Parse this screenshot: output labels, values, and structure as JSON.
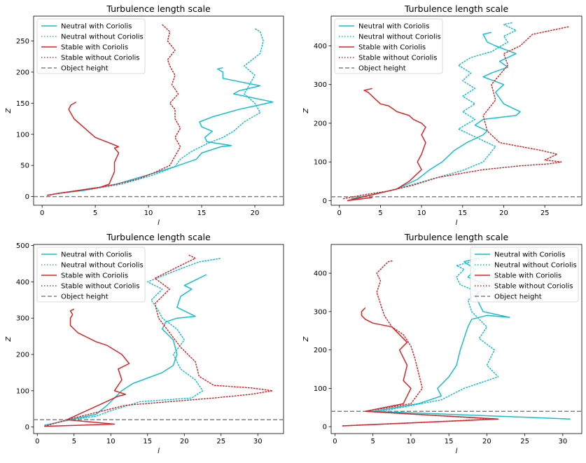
{
  "colors": {
    "neutral": "#17becf",
    "stable": "#d62728",
    "object": "#808080"
  },
  "chart_data": [
    {
      "type": "line",
      "title": "Turbulence length scale",
      "xlabel": "l",
      "ylabel": "Z",
      "xlim": [
        -0.8,
        22.7
      ],
      "ylim": [
        -14,
        290
      ],
      "xticks": [
        "0",
        "5",
        "10",
        "15",
        "20"
      ],
      "yticks": [
        "0",
        "50",
        "100",
        "150",
        "200",
        "250"
      ],
      "legend_position": "top-left",
      "object_height": 0,
      "series": [
        {
          "name": "Neutral with Coriolis",
          "style": "solid",
          "color": "#17becf",
          "x": [
            1.5,
            4.0,
            7.0,
            10.0,
            12.5,
            14.5,
            15.0,
            16.8,
            17.8,
            15.5,
            15.3,
            16.0,
            15.0,
            14.8,
            16.0,
            18.5,
            21.7,
            18.0,
            18.5,
            20.5,
            17.0,
            17.0,
            16.5,
            17.0
          ],
          "y": [
            5,
            10,
            20,
            35,
            48,
            60,
            70,
            80,
            82,
            88,
            95,
            105,
            112,
            120,
            128,
            140,
            152,
            165,
            170,
            178,
            190,
            200,
            205,
            207
          ]
        },
        {
          "name": "Neutral without Coriolis",
          "style": "dotted",
          "color": "#17becf",
          "x": [
            1.5,
            4.0,
            7.5,
            10.5,
            12.5,
            13.0,
            14.0,
            15.5,
            17.0,
            18.0,
            19.0,
            20.5,
            20.0,
            19.0,
            19.5,
            20.0,
            19.0,
            20.5,
            20.8,
            20.5,
            20.0
          ],
          "y": [
            5,
            10,
            20,
            35,
            48,
            60,
            72,
            85,
            95,
            105,
            120,
            135,
            150,
            165,
            180,
            195,
            210,
            230,
            250,
            265,
            270
          ]
        },
        {
          "name": "Stable with Coriolis",
          "style": "solid",
          "color": "#d62728",
          "x": [
            0.5,
            1.5,
            3.5,
            5.5,
            6.3,
            6.5,
            6.8,
            6.8,
            7.2,
            6.8,
            7.2,
            6.5,
            5.0,
            4.0,
            3.0,
            2.5,
            2.7,
            3.2
          ],
          "y": [
            2,
            5,
            10,
            15,
            20,
            28,
            40,
            55,
            70,
            78,
            80,
            85,
            95,
            110,
            125,
            140,
            147,
            152
          ]
        },
        {
          "name": "Stable without Coriolis",
          "style": "dotted",
          "color": "#d62728",
          "x": [
            0.5,
            1.5,
            3.5,
            5.5,
            7.0,
            9.0,
            10.5,
            12.0,
            12.5,
            13.0,
            12.5,
            13.0,
            12.5,
            12.5,
            12.0,
            12.8,
            12.2,
            12.5,
            12.0,
            11.8,
            12.5,
            11.8,
            12.0,
            11.2
          ],
          "y": [
            2,
            5,
            10,
            15,
            20,
            28,
            38,
            50,
            65,
            80,
            95,
            110,
            125,
            140,
            150,
            165,
            180,
            195,
            210,
            220,
            235,
            250,
            265,
            278
          ]
        },
        {
          "name": "Object height",
          "style": "dashed",
          "color": "#808080",
          "x": [
            -0.8,
            22.7
          ],
          "y": [
            0,
            0
          ]
        }
      ]
    },
    {
      "type": "line",
      "title": "Turbulence length scale",
      "xlabel": "l",
      "ylabel": "Z",
      "xlim": [
        -1.0,
        29.5
      ],
      "ylim": [
        -12,
        477
      ],
      "xticks": [
        "0",
        "5",
        "10",
        "15",
        "20",
        "25"
      ],
      "yticks": [
        "0",
        "100",
        "200",
        "300",
        "400"
      ],
      "legend_position": "top-left",
      "object_height": 10,
      "series": [
        {
          "name": "Neutral with Coriolis",
          "style": "solid",
          "color": "#17becf",
          "x": [
            1.5,
            4.0,
            7.0,
            9.5,
            11.0,
            12.5,
            14.0,
            15.5,
            17.5,
            18.0,
            16.5,
            17.5,
            21.5,
            22.0,
            20.0,
            19.0,
            20.0,
            17.5,
            18.5,
            20.5,
            19.5,
            21.5,
            19.0,
            18.0,
            17.5,
            18.5
          ],
          "y": [
            5,
            15,
            30,
            55,
            80,
            100,
            130,
            150,
            170,
            180,
            195,
            210,
            220,
            230,
            250,
            280,
            300,
            320,
            330,
            345,
            360,
            380,
            400,
            410,
            430,
            435
          ]
        },
        {
          "name": "Neutral without Coriolis",
          "style": "dotted",
          "color": "#17becf",
          "x": [
            1.5,
            4.0,
            7.0,
            9.5,
            12.0,
            15.0,
            17.5,
            19.0,
            17.5,
            14.5,
            16.5,
            15.0,
            16.5,
            15.0,
            16.5,
            15.0,
            16.0,
            14.5,
            16.0,
            18.5,
            20.5,
            20.0,
            21.5,
            20.0,
            21.0
          ],
          "y": [
            5,
            15,
            30,
            45,
            60,
            78,
            100,
            140,
            155,
            185,
            210,
            230,
            250,
            270,
            290,
            310,
            330,
            350,
            370,
            385,
            410,
            425,
            440,
            455,
            460
          ]
        },
        {
          "name": "Stable with Coriolis",
          "style": "solid",
          "color": "#d62728",
          "x": [
            4.0,
            1.0,
            5.0,
            7.0,
            8.5,
            10.0,
            9.5,
            10.0,
            10.5,
            10.0,
            10.5,
            10.0,
            9.0,
            8.5,
            7.0,
            6.0,
            5.0,
            4.0,
            3.5,
            3.0,
            4.0
          ],
          "y": [
            8,
            0,
            20,
            30,
            50,
            80,
            100,
            120,
            150,
            170,
            190,
            200,
            210,
            220,
            230,
            245,
            250,
            270,
            280,
            285,
            290
          ]
        },
        {
          "name": "Stable without Coriolis",
          "style": "dotted",
          "color": "#d62728",
          "x": [
            0.5,
            3.0,
            6.0,
            9.0,
            12.0,
            17.5,
            22.0,
            25.5,
            27.0,
            25.0,
            26.5,
            24.5,
            22.0,
            19.5,
            18.0,
            17.5,
            19.0,
            18.5,
            20.5,
            20.0,
            22.0,
            23.5,
            28.0
          ],
          "y": [
            5,
            15,
            25,
            40,
            60,
            80,
            90,
            95,
            100,
            105,
            120,
            130,
            140,
            150,
            180,
            220,
            260,
            300,
            350,
            380,
            400,
            430,
            450
          ]
        },
        {
          "name": "Object height",
          "style": "dashed",
          "color": "#808080",
          "x": [
            -1.0,
            29.5
          ],
          "y": [
            10,
            10
          ]
        }
      ]
    },
    {
      "type": "line",
      "title": "Turbulence length scale",
      "xlabel": "l",
      "ylabel": "Z",
      "xlim": [
        -0.5,
        33.5
      ],
      "ylim": [
        -18,
        503
      ],
      "xticks": [
        "0",
        "5",
        "10",
        "15",
        "20",
        "25",
        "30"
      ],
      "yticks": [
        "0",
        "100",
        "200",
        "300",
        "400",
        "500"
      ],
      "legend_position": "top-left",
      "object_height": 20,
      "series": [
        {
          "name": "Neutral with Coriolis",
          "style": "solid",
          "color": "#17becf",
          "x": [
            1.0,
            4.0,
            8.0,
            9.5,
            11.5,
            13.0,
            17.0,
            18.5,
            19.0,
            18.5,
            17.0,
            17.5,
            19.0,
            21.5,
            19.0,
            19.5,
            21.0,
            20.0,
            21.5,
            23.0
          ],
          "y": [
            5,
            18,
            35,
            60,
            100,
            120,
            150,
            170,
            200,
            240,
            270,
            290,
            300,
            305,
            330,
            360,
            380,
            390,
            405,
            420
          ]
        },
        {
          "name": "Neutral without Coriolis",
          "style": "dotted",
          "color": "#17becf",
          "x": [
            1.0,
            4.0,
            8.0,
            10.0,
            14.0,
            21.0,
            22.5,
            21.5,
            19.5,
            18.5,
            20.0,
            19.0,
            17.0,
            16.5,
            15.5,
            17.0,
            15.0,
            17.5,
            20.0,
            22.0,
            25.0
          ],
          "y": [
            5,
            18,
            30,
            45,
            70,
            80,
            100,
            130,
            160,
            200,
            240,
            270,
            300,
            320,
            350,
            380,
            400,
            420,
            440,
            455,
            465
          ]
        },
        {
          "name": "Stable with Coriolis",
          "style": "solid",
          "color": "#d62728",
          "x": [
            1.0,
            10.5,
            4.0,
            11.0,
            12.0,
            10.5,
            11.5,
            11.0,
            12.5,
            11.5,
            9.5,
            8.0,
            5.5,
            4.5,
            4.5,
            4.8,
            4.5,
            5.0
          ],
          "y": [
            2,
            8,
            20,
            85,
            90,
            100,
            130,
            160,
            175,
            200,
            225,
            235,
            260,
            280,
            300,
            310,
            320,
            325
          ]
        },
        {
          "name": "Stable without Coriolis",
          "style": "dotted",
          "color": "#d62728",
          "x": [
            1.0,
            4.0,
            8.0,
            12.0,
            18.0,
            24.0,
            29.0,
            32.0,
            29.0,
            24.0,
            22.0,
            21.5,
            19.5,
            16.5,
            16.0,
            18.0,
            16.0,
            19.0,
            21.5,
            20.5
          ],
          "y": [
            2,
            20,
            40,
            60,
            70,
            80,
            90,
            100,
            108,
            115,
            140,
            180,
            220,
            300,
            340,
            380,
            410,
            440,
            465,
            475
          ]
        },
        {
          "name": "Object height",
          "style": "dashed",
          "color": "#808080",
          "x": [
            -0.5,
            33.5
          ],
          "y": [
            20,
            20
          ]
        }
      ]
    },
    {
      "type": "line",
      "title": "Turbulence length scale",
      "xlabel": "l",
      "ylabel": "Z",
      "xlim": [
        -0.5,
        32.5
      ],
      "ylim": [
        -18,
        475
      ],
      "xticks": [
        "0",
        "5",
        "10",
        "15",
        "20",
        "25",
        "30"
      ],
      "yticks": [
        "0",
        "100",
        "200",
        "300",
        "400"
      ],
      "legend_position": "top-right",
      "object_height": 40,
      "series": [
        {
          "name": "Neutral with Coriolis",
          "style": "solid",
          "color": "#17becf",
          "x": [
            31.0,
            5.0,
            11.0,
            14.0,
            13.5,
            15.0,
            16.0,
            16.5,
            17.0,
            17.5,
            18.0,
            20.0,
            23.0,
            19.5,
            18.5,
            20.0,
            17.5,
            18.5,
            17.0,
            19.0
          ],
          "y": [
            20,
            40,
            60,
            80,
            100,
            130,
            160,
            200,
            230,
            260,
            280,
            290,
            285,
            300,
            340,
            370,
            390,
            410,
            430,
            440
          ]
        },
        {
          "name": "Neutral without Coriolis",
          "style": "dotted",
          "color": "#17becf",
          "x": [
            6.0,
            14.0,
            17.0,
            21.5,
            20.0,
            21.0,
            19.0,
            20.0,
            18.0,
            17.5,
            19.0,
            16.5,
            16.0,
            17.0,
            16.0,
            18.0,
            19.5,
            20.0
          ],
          "y": [
            40,
            70,
            100,
            130,
            160,
            200,
            230,
            260,
            300,
            330,
            350,
            370,
            390,
            410,
            420,
            430,
            440,
            445
          ]
        },
        {
          "name": "Stable with Coriolis",
          "style": "solid",
          "color": "#d62728",
          "x": [
            1.0,
            10.0,
            21.5,
            4.0,
            9.0,
            10.0,
            9.0,
            9.5,
            8.5,
            9.5,
            8.5,
            7.5,
            5.0,
            4.0,
            3.5,
            3.5,
            4.0
          ],
          "y": [
            2,
            10,
            20,
            40,
            60,
            100,
            120,
            160,
            200,
            220,
            240,
            260,
            270,
            280,
            290,
            300,
            310
          ]
        },
        {
          "name": "Stable without Coriolis",
          "style": "dotted",
          "color": "#d62728",
          "x": [
            1.0,
            10.0,
            21.0,
            4.0,
            10.0,
            11.5,
            11.0,
            10.5,
            10.0,
            9.0,
            7.5,
            6.5,
            6.0,
            5.5,
            6.0,
            5.5,
            6.5,
            7.0,
            7.5
          ],
          "y": [
            2,
            10,
            20,
            40,
            60,
            100,
            140,
            180,
            210,
            240,
            260,
            290,
            320,
            350,
            380,
            400,
            420,
            430,
            432
          ]
        },
        {
          "name": "Object height",
          "style": "dashed",
          "color": "#808080",
          "x": [
            -0.5,
            32.5
          ],
          "y": [
            40,
            40
          ]
        }
      ]
    }
  ]
}
